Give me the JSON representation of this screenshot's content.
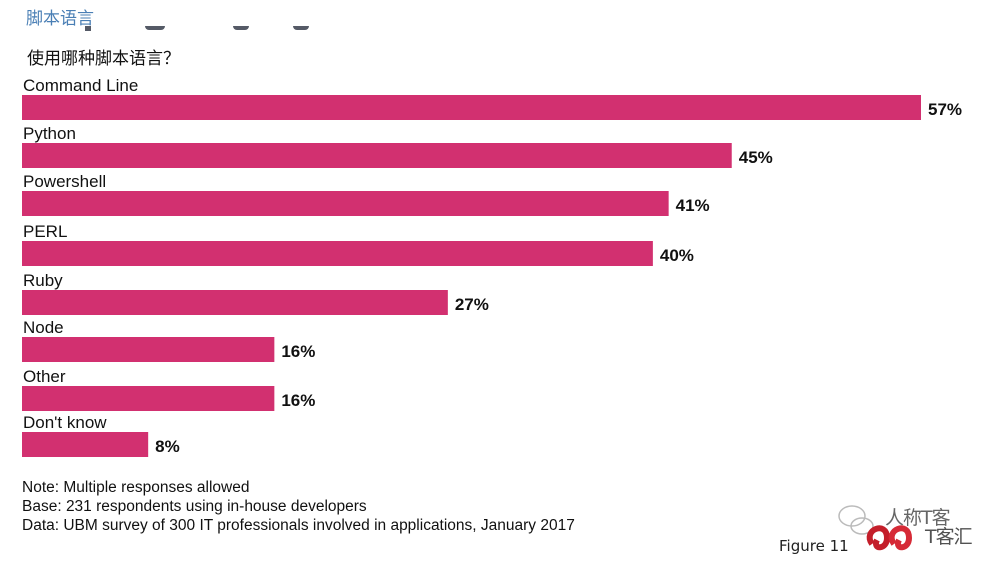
{
  "header": {
    "title": "脚本语言",
    "question": "使用哪种脚本语言？"
  },
  "chart_data": {
    "type": "bar",
    "orientation": "horizontal",
    "title": "使用哪种脚本语言？",
    "xlabel": "",
    "ylabel": "",
    "xlim": [
      0,
      57
    ],
    "grid": false,
    "bar_color": "#d23070",
    "categories": [
      "Command Line",
      "Python",
      "Powershell",
      "PERL",
      "Ruby",
      "Node",
      "Other",
      "Don't know"
    ],
    "values": [
      57,
      45,
      41,
      40,
      27,
      16,
      16,
      8
    ],
    "value_labels": [
      "57%",
      "45%",
      "41%",
      "40%",
      "27%",
      "16%",
      "16%",
      "8%"
    ],
    "unit": "%"
  },
  "notes": {
    "note": "Note: Multiple responses allowed",
    "base": "Base: 231 respondents using in-house developers",
    "data": "Data: UBM survey of 300 IT professionals involved in applications, January 2017"
  },
  "figure_label": "Figure 11",
  "watermark": {
    "line1": "人称T客",
    "line2": "T客汇"
  }
}
